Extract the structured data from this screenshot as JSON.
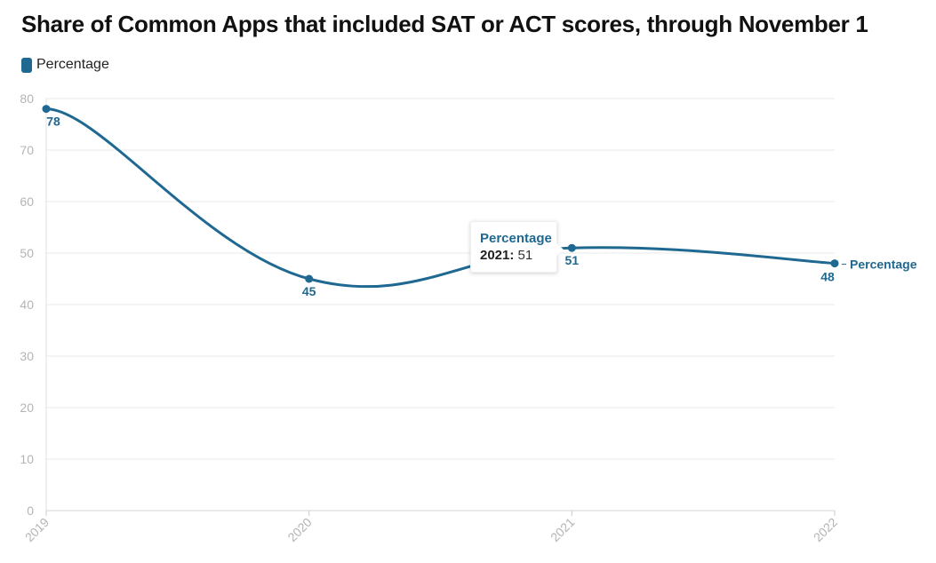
{
  "title": "Share of Common Apps that included SAT or ACT scores, through November 1",
  "legend": {
    "label": "Percentage",
    "color": "#1e6891"
  },
  "tooltip": {
    "series": "Percentage",
    "category": "2021",
    "value": "51"
  },
  "chart_data": {
    "type": "line",
    "title": "Share of Common Apps that included SAT or ACT scores, through November 1",
    "xlabel": "",
    "ylabel": "",
    "categories": [
      "2019",
      "2020",
      "2021",
      "2022"
    ],
    "series": [
      {
        "name": "Percentage",
        "values": [
          78,
          45,
          51,
          48
        ],
        "color": "#1e6891"
      }
    ],
    "yticks": [
      0,
      10,
      20,
      30,
      40,
      50,
      60,
      70,
      80
    ],
    "ylim": [
      0,
      80
    ],
    "grid": true,
    "legend": "top-left",
    "data_labels": true,
    "end_label": "Percentage",
    "smooth": true
  }
}
